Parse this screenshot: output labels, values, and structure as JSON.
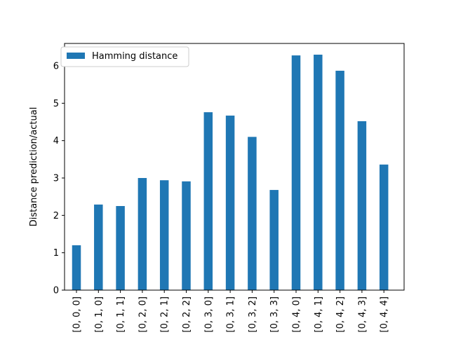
{
  "chart_data": {
    "type": "bar",
    "title": "",
    "xlabel": "",
    "ylabel": "Distance prediction/actual",
    "categories": [
      "[0, 0, 0]",
      "[0, 1, 0]",
      "[0, 1, 1]",
      "[0, 2, 0]",
      "[0, 2, 1]",
      "[0, 2, 2]",
      "[0, 3, 0]",
      "[0, 3, 1]",
      "[0, 3, 2]",
      "[0, 3, 3]",
      "[0, 4, 0]",
      "[0, 4, 1]",
      "[0, 4, 2]",
      "[0, 4, 3]",
      "[0, 4, 4]"
    ],
    "series": [
      {
        "name": "Hamming distance",
        "color": "#1f77b4",
        "values": [
          1.2,
          2.29,
          2.25,
          3.0,
          2.94,
          2.91,
          4.76,
          4.67,
          4.1,
          2.68,
          6.28,
          6.3,
          5.87,
          4.52,
          3.36
        ]
      }
    ],
    "ylim": [
      0,
      6.6
    ],
    "yticks": [
      0,
      1,
      2,
      3,
      4,
      5,
      6
    ],
    "grid": false,
    "legend": "top-left"
  }
}
